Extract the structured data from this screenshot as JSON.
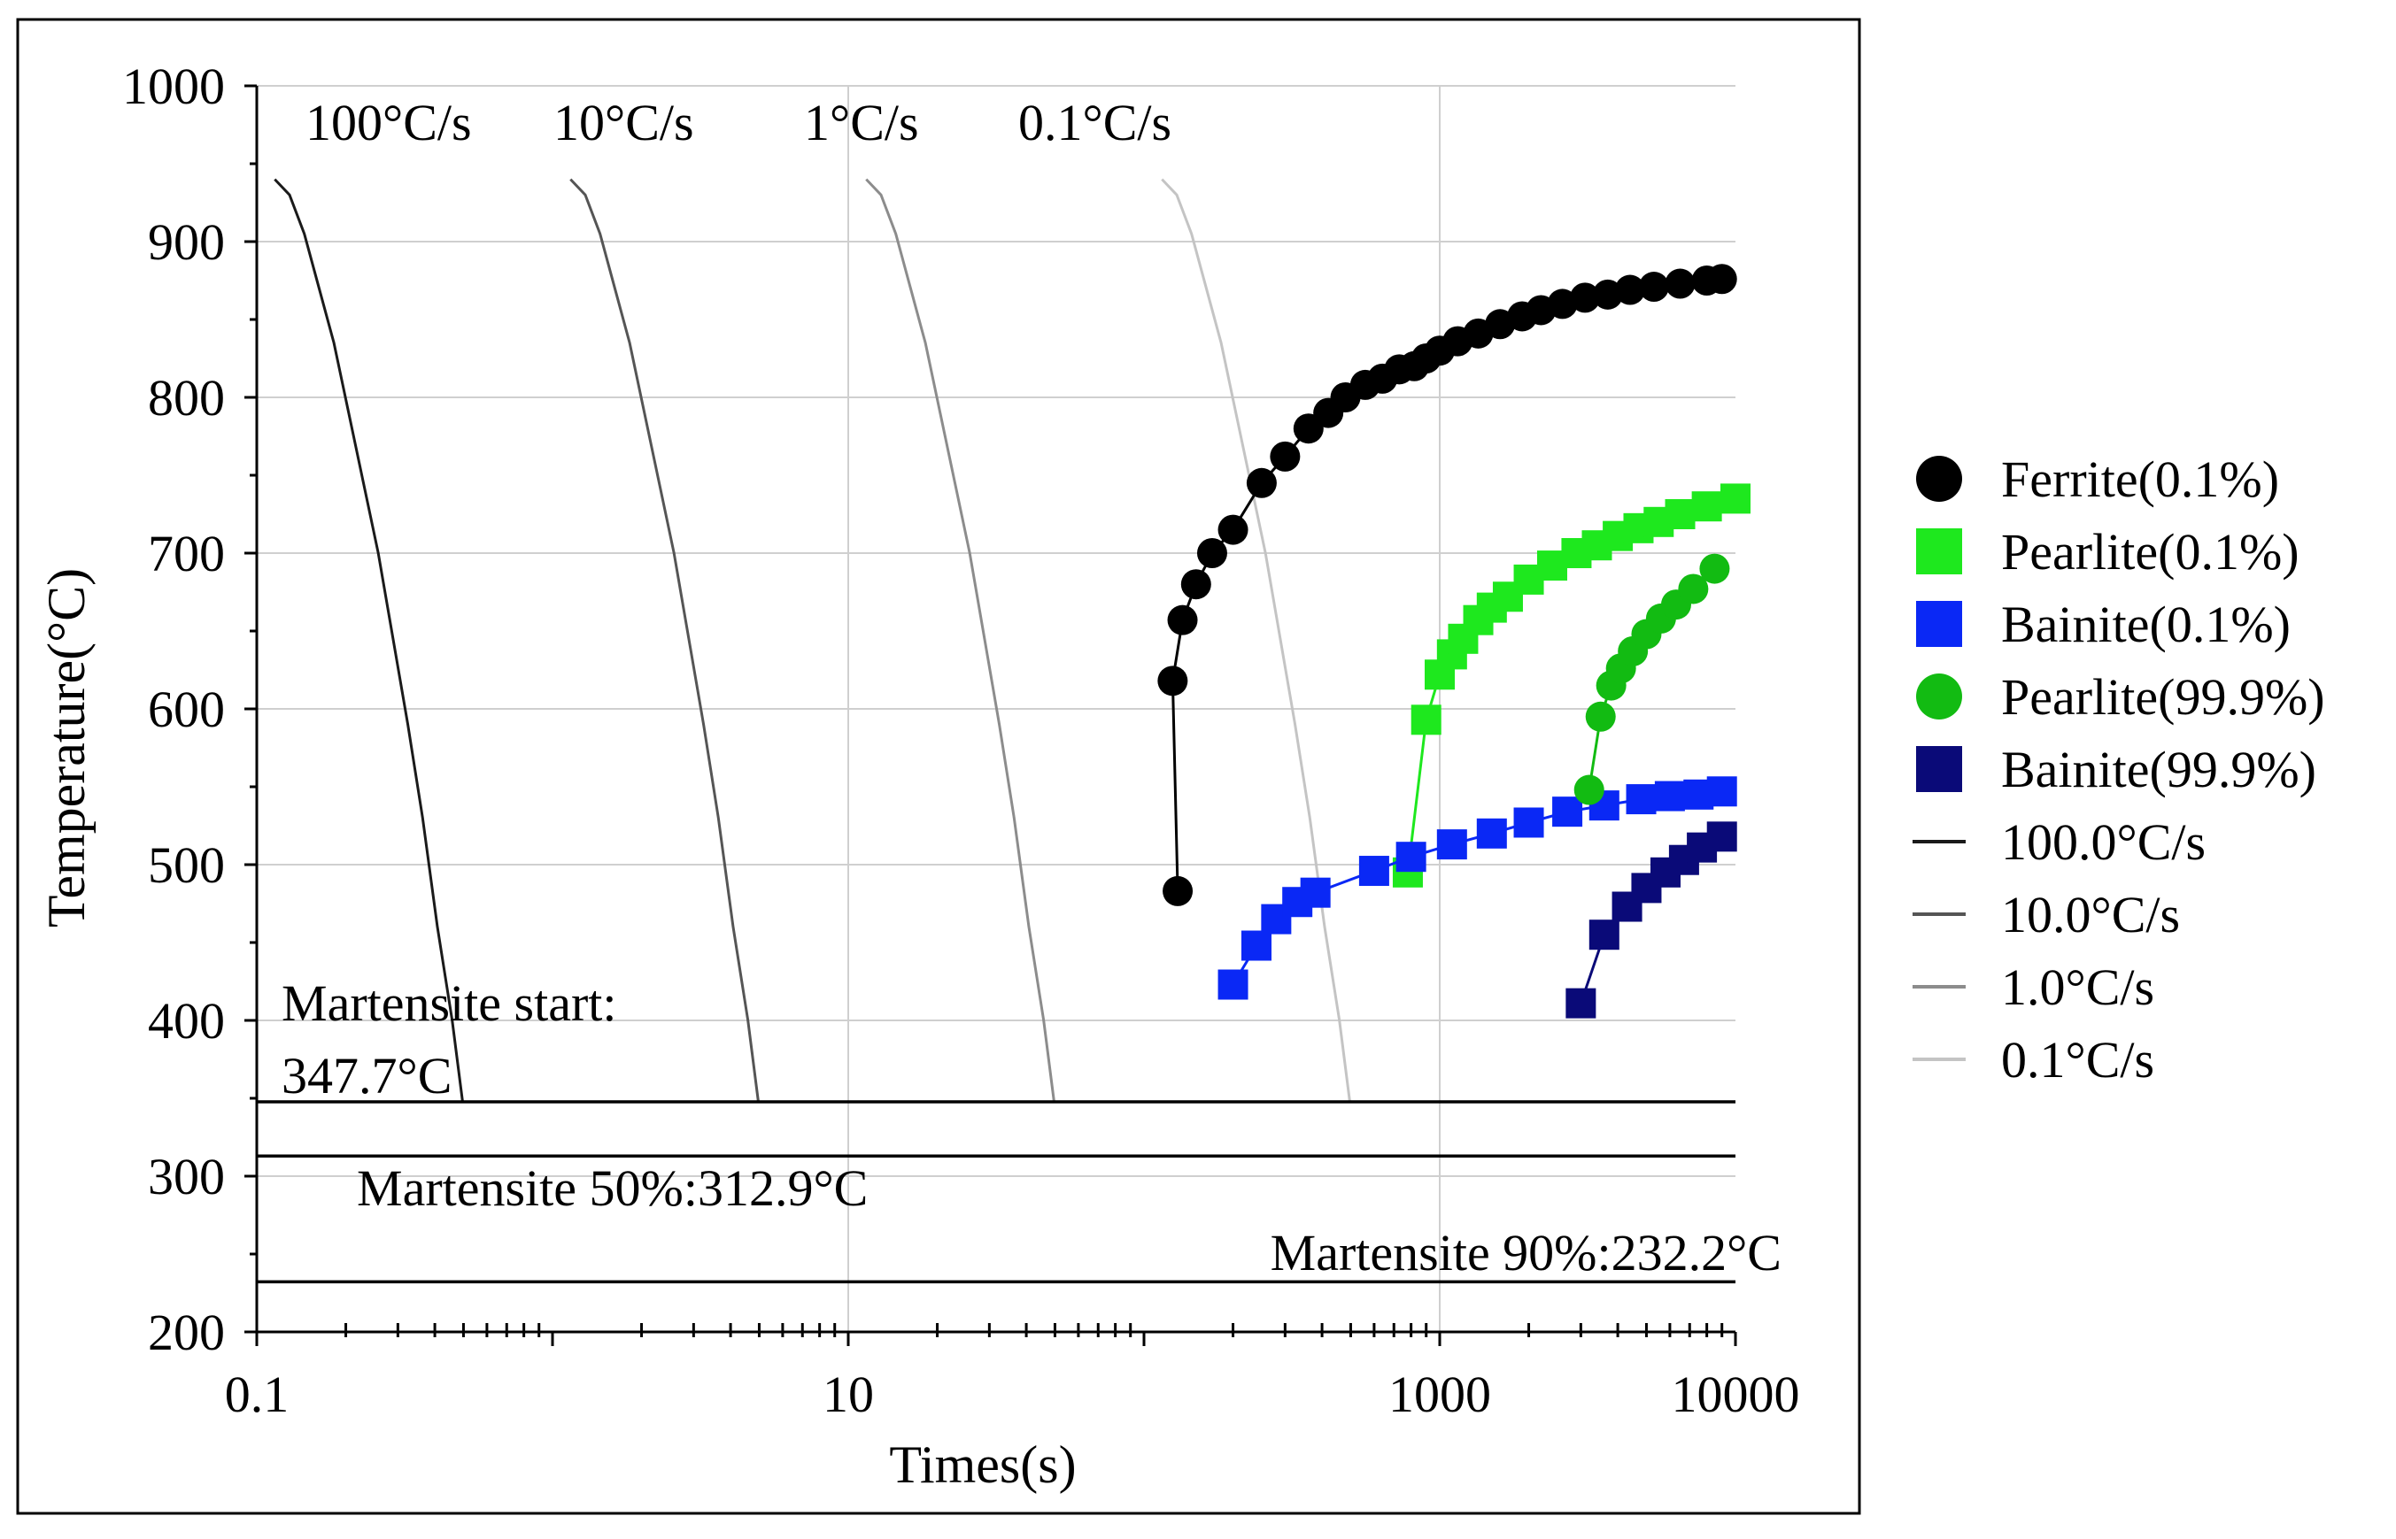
{
  "chart_data": {
    "type": "scatter",
    "title": "",
    "xlabel": "Times(s)",
    "ylabel": "Temperature(°C)",
    "x_scale": "log",
    "xlim": [
      0.1,
      10000
    ],
    "ylim": [
      200,
      1000
    ],
    "x_ticks": [
      {
        "value": 0.1,
        "label": "0.1"
      },
      {
        "value": 10,
        "label": "10"
      },
      {
        "value": 1000,
        "label": "1000"
      },
      {
        "value": 10000,
        "label": "10000"
      }
    ],
    "y_ticks": [
      {
        "value": 200,
        "label": "200"
      },
      {
        "value": 300,
        "label": "300"
      },
      {
        "value": 400,
        "label": "400"
      },
      {
        "value": 500,
        "label": "500"
      },
      {
        "value": 600,
        "label": "600"
      },
      {
        "value": 700,
        "label": "700"
      },
      {
        "value": 800,
        "label": "800"
      },
      {
        "value": 900,
        "label": "900"
      },
      {
        "value": 1000,
        "label": "1000"
      }
    ],
    "vertical_gridlines": [
      10,
      1000
    ],
    "colors": {
      "ferrite": "#000000",
      "pearlite_start": "#1ee81e",
      "bainite_start": "#0a28f5",
      "pearlite_finish": "#12bb12",
      "bainite_finish": "#0a0a78",
      "cool_100": "#1a1a1a",
      "cool_10": "#555555",
      "cool_1": "#8c8c8c",
      "cool_01": "#c4c4c4",
      "grid": "#cfcfcf",
      "martensite": "#000000"
    },
    "rate_labels": [
      {
        "label": "100°C/s",
        "x": 0.1
      },
      {
        "label": "10°C/s",
        "x": 1.2
      },
      {
        "label": "1°C/s",
        "x": 12
      },
      {
        "label": "0.1°C/s",
        "x": 120
      }
    ],
    "martensite_lines": [
      {
        "name": "martensite-start",
        "value": 347.7,
        "label_line1": "Martensite start:",
        "label_line2": "347.7°C"
      },
      {
        "name": "martensite-50",
        "value": 312.9,
        "label": "Martensite 50%:312.9°C"
      },
      {
        "name": "martensite-90",
        "value": 232.2,
        "label": "Martensite 90%:232.2°C"
      }
    ],
    "legend": [
      {
        "label": "Ferrite(0.1%)",
        "marker": "circle",
        "color_key": "ferrite"
      },
      {
        "label": "Pearlite(0.1%)",
        "marker": "square",
        "color_key": "pearlite_start"
      },
      {
        "label": "Bainite(0.1%)",
        "marker": "square",
        "color_key": "bainite_start"
      },
      {
        "label": "Pearlite(99.9%)",
        "marker": "circle",
        "color_key": "pearlite_finish"
      },
      {
        "label": "Bainite(99.9%)",
        "marker": "square",
        "color_key": "bainite_finish"
      },
      {
        "label": "100.0°C/s",
        "marker": "line",
        "color_key": "cool_100"
      },
      {
        "label": "10.0°C/s",
        "marker": "line",
        "color_key": "cool_10"
      },
      {
        "label": "1.0°C/s",
        "marker": "line",
        "color_key": "cool_1"
      },
      {
        "label": "0.1°C/s",
        "marker": "line",
        "color_key": "cool_01"
      }
    ],
    "cooling_curves": [
      {
        "name": "100.0°C/s",
        "color_key": "cool_100",
        "x0": 0.115
      },
      {
        "name": "10.0°C/s",
        "color_key": "cool_10",
        "x0": 1.15
      },
      {
        "name": "1.0°C/s",
        "color_key": "cool_1",
        "x0": 11.5
      },
      {
        "name": "0.1°C/s",
        "color_key": "cool_01",
        "x0": 115
      }
    ],
    "cooling_profile": [
      {
        "dt": 0,
        "t": 940
      },
      {
        "dt": 0.05,
        "t": 930
      },
      {
        "dt": 0.1,
        "t": 905
      },
      {
        "dt": 0.15,
        "t": 870
      },
      {
        "dt": 0.2,
        "t": 835
      },
      {
        "dt": 0.25,
        "t": 790
      },
      {
        "dt": 0.3,
        "t": 745
      },
      {
        "dt": 0.35,
        "t": 700
      },
      {
        "dt": 0.4,
        "t": 645
      },
      {
        "dt": 0.45,
        "t": 590
      },
      {
        "dt": 0.5,
        "t": 530
      },
      {
        "dt": 0.55,
        "t": 460
      },
      {
        "dt": 0.6,
        "t": 400
      },
      {
        "dt": 0.635,
        "t": 348
      }
    ],
    "series": [
      {
        "name": "Ferrite(0.1%)",
        "color_key": "ferrite",
        "marker": "circle",
        "x": [
          130,
          125,
          135,
          150,
          170,
          200,
          250,
          300,
          360,
          420,
          480,
          560,
          640,
          730,
          820,
          900,
          1000,
          1150,
          1350,
          1600,
          1900,
          2200,
          2600,
          3100,
          3700,
          4400,
          5300,
          6500,
          8000,
          9000
        ],
        "y": [
          483,
          618,
          657,
          680,
          700,
          715,
          745,
          762,
          780,
          790,
          800,
          808,
          812,
          818,
          820,
          825,
          830,
          836,
          841,
          847,
          852,
          856,
          860,
          864,
          866,
          869,
          871,
          873,
          875,
          876
        ]
      },
      {
        "name": "Pearlite(0.1%)",
        "color_key": "pearlite_start",
        "marker": "square",
        "x": [
          780,
          900,
          1000,
          1100,
          1200,
          1350,
          1500,
          1700,
          2000,
          2400,
          2900,
          3400,
          4000,
          4700,
          5500,
          6500,
          8000,
          10000
        ],
        "y": [
          495,
          593,
          622,
          635,
          645,
          657,
          665,
          672,
          683,
          692,
          700,
          705,
          711,
          716,
          720,
          725,
          730,
          735
        ]
      },
      {
        "name": "Bainite(0.1%)",
        "color_key": "bainite_start",
        "marker": "square",
        "x": [
          200,
          240,
          280,
          330,
          380,
          600,
          800,
          1100,
          1500,
          2000,
          2700,
          3600,
          4800,
          6000,
          7500,
          9000
        ],
        "y": [
          423,
          448,
          465,
          476,
          482,
          496,
          505,
          513,
          520,
          527,
          534,
          538,
          542,
          544,
          545,
          547
        ]
      },
      {
        "name": "Pearlite(99.9%)",
        "color_key": "pearlite_finish",
        "marker": "circle",
        "x": [
          3200,
          3500,
          3800,
          4100,
          4500,
          5000,
          5600,
          6300,
          7200,
          8500
        ],
        "y": [
          548,
          595,
          615,
          626,
          637,
          648,
          658,
          667,
          677,
          690
        ]
      },
      {
        "name": "Bainite(99.9%)",
        "color_key": "bainite_finish",
        "marker": "square",
        "x": [
          3000,
          3600,
          4300,
          5000,
          5800,
          6700,
          7700,
          9000
        ],
        "y": [
          411,
          455,
          473,
          485,
          495,
          503,
          511,
          518
        ]
      }
    ]
  }
}
